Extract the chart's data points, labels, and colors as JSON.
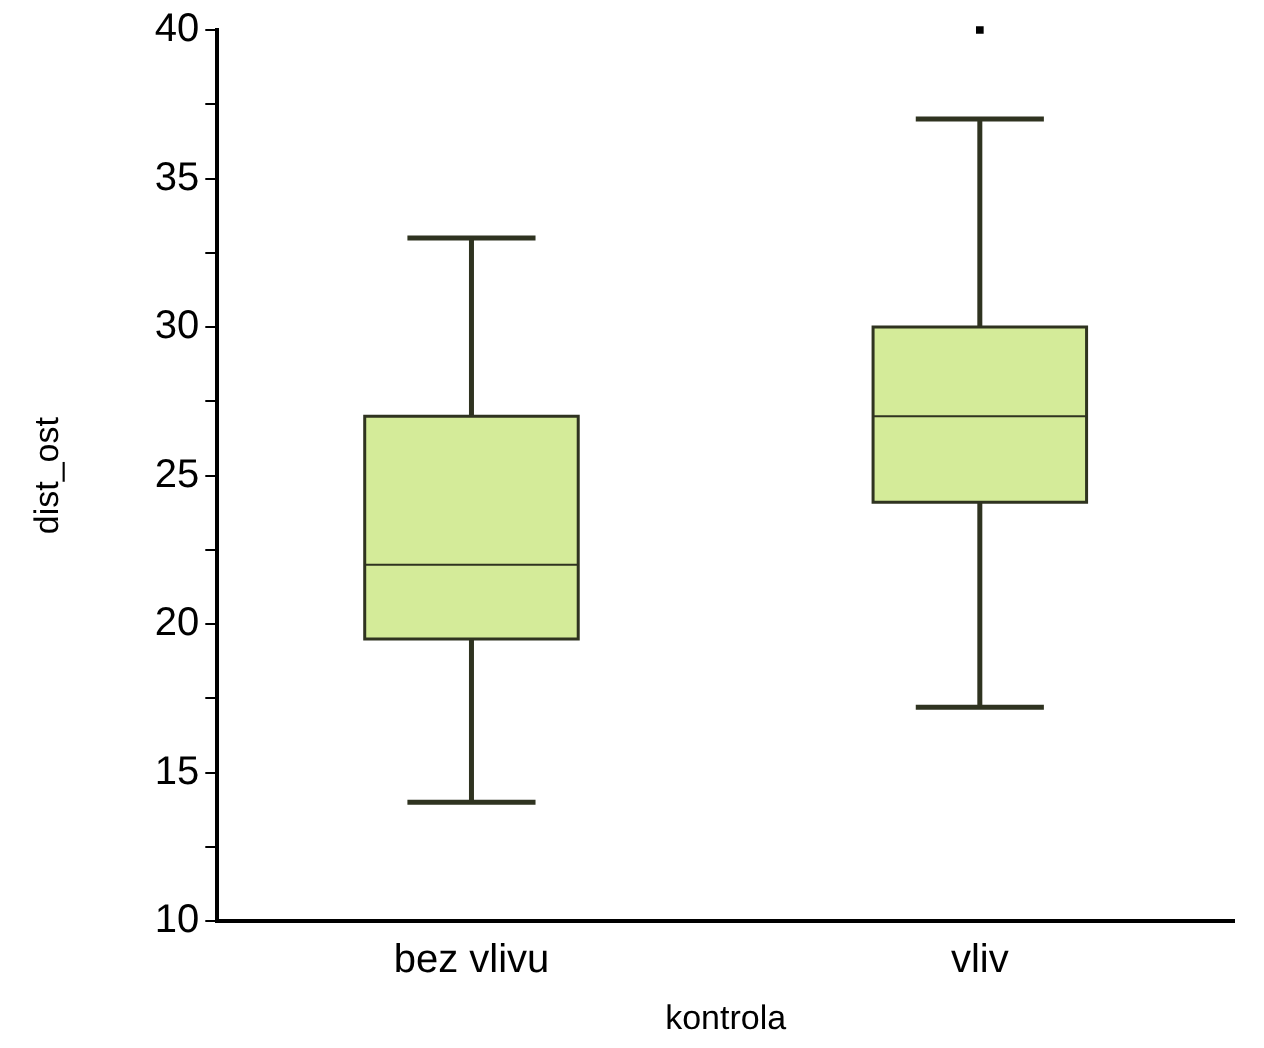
{
  "chart_data": {
    "type": "box",
    "xlabel": "kontrola",
    "ylabel": "dist_ost",
    "categories": [
      "bez vlivu",
      "vliv"
    ],
    "color": "#d4eb99",
    "boxes": [
      {
        "low": 14,
        "q1": 19.5,
        "median": 22,
        "q3": 27,
        "high": 33
      },
      {
        "low": 17.2,
        "q1": 24.1,
        "median": 27,
        "q3": 30,
        "high": 37,
        "outliers": [
          40
        ]
      }
    ],
    "ylim": [
      10,
      40
    ],
    "yticks": [
      10,
      {
        "value": 12.5,
        "label": null
      },
      15,
      {
        "value": 17.5,
        "label": null
      },
      20,
      {
        "value": 22.5,
        "label": null
      },
      25,
      {
        "value": 27.5,
        "label": null
      },
      30,
      {
        "value": 32.5,
        "label": null
      },
      35,
      {
        "value": 37.5,
        "label": null
      },
      40
    ],
    "grid": false,
    "legend": false
  }
}
